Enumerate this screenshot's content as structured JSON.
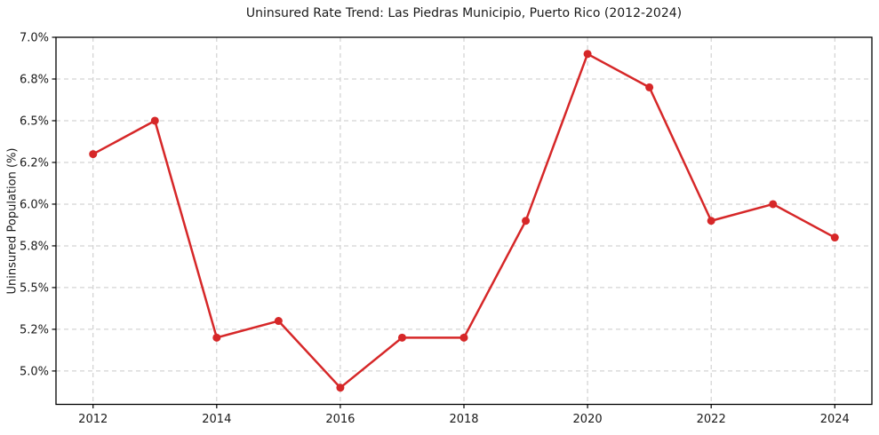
{
  "chart_data": {
    "type": "line",
    "title": "Uninsured Rate Trend: Las Piedras Municipio, Puerto Rico (2012-2024)",
    "ylabel": "Uninsured Population (%)",
    "xlabel": "",
    "x": [
      2012,
      2013,
      2014,
      2015,
      2016,
      2017,
      2018,
      2019,
      2020,
      2021,
      2022,
      2023,
      2024
    ],
    "values": [
      6.3,
      6.5,
      5.2,
      5.3,
      4.9,
      5.2,
      5.2,
      5.9,
      6.9,
      6.7,
      5.9,
      6.0,
      5.8
    ],
    "xlim": [
      2011.4,
      2024.6
    ],
    "ylim": [
      4.8,
      7.0
    ],
    "xticks": [
      {
        "value": 2012,
        "label": "2012"
      },
      {
        "value": 2014,
        "label": "2014"
      },
      {
        "value": 2016,
        "label": "2016"
      },
      {
        "value": 2018,
        "label": "2018"
      },
      {
        "value": 2020,
        "label": "2020"
      },
      {
        "value": 2022,
        "label": "2022"
      },
      {
        "value": 2024,
        "label": "2024"
      }
    ],
    "yticks": [
      {
        "value": 5.0,
        "label": "5.0%"
      },
      {
        "value": 5.25,
        "label": "5.2%"
      },
      {
        "value": 5.5,
        "label": "5.5%"
      },
      {
        "value": 5.75,
        "label": "5.8%"
      },
      {
        "value": 6.0,
        "label": "6.0%"
      },
      {
        "value": 6.25,
        "label": "6.2%"
      },
      {
        "value": 6.5,
        "label": "6.5%"
      },
      {
        "value": 6.75,
        "label": "6.8%"
      },
      {
        "value": 7.0,
        "label": "7.0%"
      }
    ],
    "grid": "dashed",
    "legend": "none",
    "colors": {
      "line": "#d62728",
      "marker": "#d62728",
      "grid": "#c9c9c9",
      "spine": "#000000",
      "text": "#1a1a1a",
      "background": "#ffffff"
    },
    "line_width": 2.5,
    "marker_radius": 4.5
  }
}
